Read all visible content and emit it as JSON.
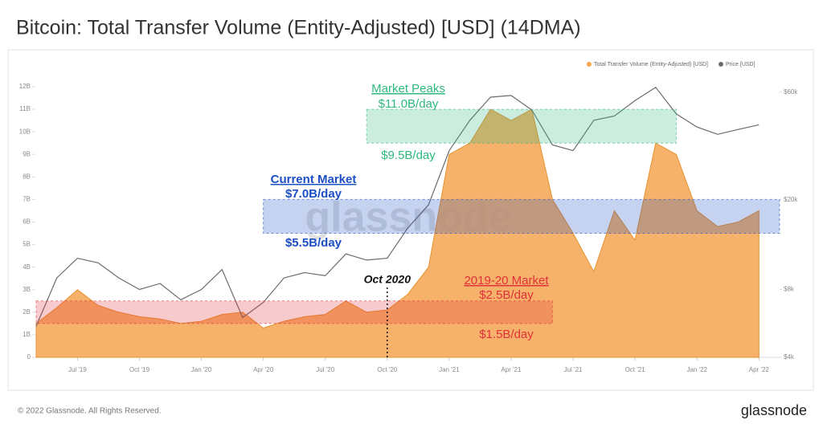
{
  "chart_data": {
    "type": "area-line",
    "title": "Bitcoin: Total Transfer Volume (Entity-Adjusted) [USD] (14DMA)",
    "x": [
      "2019-05",
      "2019-06",
      "2019-07",
      "2019-08",
      "2019-09",
      "2019-10",
      "2019-11",
      "2019-12",
      "2020-01",
      "2020-02",
      "2020-03",
      "2020-04",
      "2020-05",
      "2020-06",
      "2020-07",
      "2020-08",
      "2020-09",
      "2020-10",
      "2020-11",
      "2020-12",
      "2021-01",
      "2021-02",
      "2021-03",
      "2021-04",
      "2021-05",
      "2021-06",
      "2021-07",
      "2021-08",
      "2021-09",
      "2021-10",
      "2021-11",
      "2021-12",
      "2022-01",
      "2022-02",
      "2022-03",
      "2022-04"
    ],
    "series": [
      {
        "name": "Total Transfer Volume (Entity-Adjusted) [USD]",
        "color": "#f5a550",
        "axis": "y",
        "values": [
          1.5,
          2.2,
          3.0,
          2.3,
          2.0,
          1.8,
          1.7,
          1.5,
          1.6,
          1.9,
          2.0,
          1.3,
          1.6,
          1.8,
          1.9,
          2.5,
          2.0,
          2.1,
          2.8,
          4.0,
          9.0,
          9.5,
          11.0,
          10.5,
          11.0,
          7.0,
          5.5,
          3.8,
          6.5,
          5.2,
          9.5,
          9.0,
          6.5,
          5.8,
          6.0,
          6.5
        ]
      },
      {
        "name": "Price [USD]",
        "color": "#6b6b6b",
        "axis": "y2",
        "values": [
          5500,
          9000,
          11000,
          10500,
          9000,
          8000,
          8500,
          7200,
          8000,
          9800,
          6000,
          7000,
          9000,
          9500,
          9200,
          11500,
          10800,
          11000,
          15000,
          19000,
          33000,
          45000,
          57000,
          58000,
          50000,
          35000,
          33000,
          45000,
          47000,
          55000,
          63000,
          48000,
          42000,
          39000,
          41000,
          43000
        ]
      }
    ],
    "xlim": [
      "2019-05",
      "2022-05"
    ],
    "xticks": [
      {
        "value": "2019-07",
        "label": "Jul '19"
      },
      {
        "value": "2019-10",
        "label": "Oct '19"
      },
      {
        "value": "2020-01",
        "label": "Jan '20"
      },
      {
        "value": "2020-04",
        "label": "Apr '20"
      },
      {
        "value": "2020-07",
        "label": "Jul '20"
      },
      {
        "value": "2020-10",
        "label": "Oct '20"
      },
      {
        "value": "2021-01",
        "label": "Jan '21"
      },
      {
        "value": "2021-04",
        "label": "Apr '21"
      },
      {
        "value": "2021-07",
        "label": "Jul '21"
      },
      {
        "value": "2021-10",
        "label": "Oct '21"
      },
      {
        "value": "2022-01",
        "label": "Jan '22"
      },
      {
        "value": "2022-04",
        "label": "Apr '22"
      }
    ],
    "ylim": [
      0,
      12
    ],
    "yticks": [
      0,
      {
        "value": 1,
        "label": "1B"
      },
      {
        "value": 2,
        "label": "2B"
      },
      {
        "value": 3,
        "label": "3B"
      },
      {
        "value": 4,
        "label": "4B"
      },
      {
        "value": 5,
        "label": "5B"
      },
      {
        "value": 6,
        "label": "6B"
      },
      {
        "value": 7,
        "label": "7B"
      },
      {
        "value": 8,
        "label": "8B"
      },
      {
        "value": 9,
        "label": "9B"
      },
      {
        "value": 10,
        "label": "10B"
      },
      {
        "value": 11,
        "label": "11B"
      },
      {
        "value": 12,
        "label": "12B"
      }
    ],
    "y2lim": [
      4000,
      63400
    ],
    "y2ticks": [
      {
        "value": 4000,
        "label": "$4k"
      },
      {
        "value": 8000,
        "label": "$8k"
      },
      {
        "value": 20000,
        "label": "$20k"
      },
      {
        "value": 60000,
        "label": "$60k"
      }
    ],
    "y2log": true,
    "legend": "top-right",
    "bands": [
      {
        "label": "Market Peaks",
        "low": 9.5,
        "high": 11.0,
        "low_label": "$9.5B/day",
        "high_label": "$11.0B/day",
        "color": "#2eb87e",
        "from": "2020-09",
        "to": "2021-12"
      },
      {
        "label": "Current Market",
        "low": 5.5,
        "high": 7.0,
        "low_label": "$5.5B/day",
        "high_label": "$7.0B/day",
        "color": "#1d4fc4",
        "from": "2020-04",
        "to": "2022-05"
      },
      {
        "label": "2019-20 Market",
        "low": 1.5,
        "high": 2.5,
        "low_label": "$1.5B/day",
        "high_label": "$2.5B/day",
        "color": "#e0303a",
        "from": "2019-05",
        "to": "2021-06"
      }
    ],
    "marker": {
      "x": "2020-10",
      "label": "Oct 2020"
    },
    "watermark": "glassnode",
    "footer": "© 2022 Glassnode. All Rights Reserved.",
    "brand": "glassnode"
  }
}
